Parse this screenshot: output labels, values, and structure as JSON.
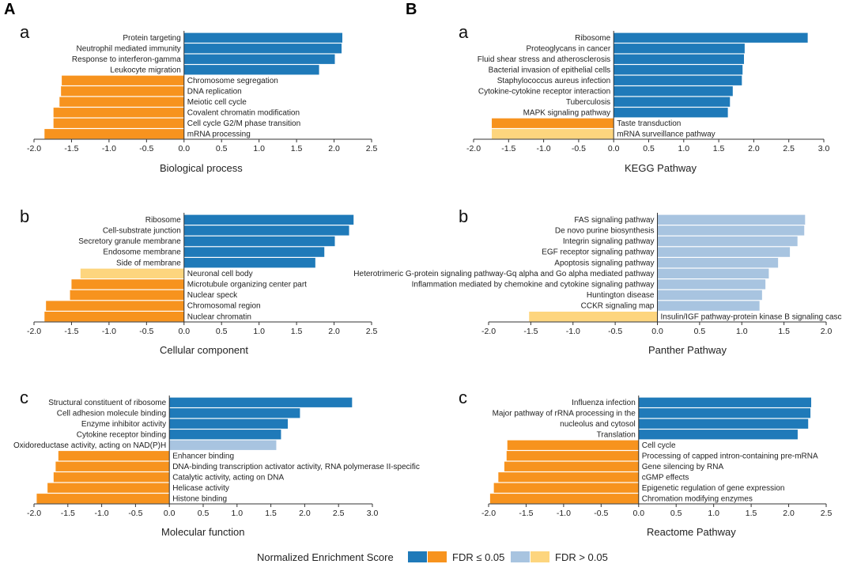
{
  "figure": {
    "panel_labels": [
      "A",
      "B"
    ],
    "legend": {
      "title": "Normalized Enrichment Score",
      "sig_label": "FDR ≤ 0.05",
      "nonsig_label": "FDR > 0.05",
      "colors": {
        "pos_sig": "#1f7ab9",
        "neg_sig": "#f7931e",
        "pos_nonsig": "#a8c4e0",
        "neg_nonsig": "#fdd57e"
      }
    }
  },
  "chart_data": [
    {
      "type": "bar",
      "orientation": "horizontal",
      "sub_label": "a",
      "title": "Biological process",
      "xlim": [
        -2.0,
        2.5
      ],
      "ticks": [
        "-2.0",
        "-1.5",
        "-1.0",
        "-0.5",
        "0.0",
        "0.5",
        "1.0",
        "1.5",
        "2.0",
        "2.5"
      ],
      "categories": [
        "Protein targeting",
        "Neutrophil mediated immunity",
        "Response to interferon-gamma",
        "Leukocyte migration",
        "Chromosome segregation",
        "DNA replication",
        "Meiotic cell cycle",
        "Covalent chromatin modification",
        "Cell cycle G2/M phase transition",
        "mRNA processing"
      ],
      "values": [
        2.11,
        2.1,
        2.01,
        1.8,
        -1.63,
        -1.64,
        -1.66,
        -1.74,
        -1.74,
        -1.86
      ],
      "significant": [
        true,
        true,
        true,
        true,
        true,
        true,
        true,
        true,
        true,
        true
      ]
    },
    {
      "type": "bar",
      "orientation": "horizontal",
      "sub_label": "b",
      "title": "Cellular component",
      "xlim": [
        -2.0,
        2.5
      ],
      "ticks": [
        "-2.0",
        "-1.5",
        "-1.0",
        "-0.5",
        "0.0",
        "0.5",
        "1.0",
        "1.5",
        "2.0",
        "2.5"
      ],
      "categories": [
        "Ribosome",
        "Cell-substrate junction",
        "Secretory granule membrane",
        "Endosome membrane",
        "Side of membrane",
        "Neuronal cell body",
        "Microtubule organizing center part",
        "Nuclear speck",
        "Chromosomal region",
        "Nuclear chromatin"
      ],
      "values": [
        2.26,
        2.2,
        2.01,
        1.87,
        1.75,
        -1.38,
        -1.5,
        -1.52,
        -1.84,
        -1.86
      ],
      "significant": [
        true,
        true,
        true,
        true,
        true,
        false,
        true,
        true,
        true,
        true
      ]
    },
    {
      "type": "bar",
      "orientation": "horizontal",
      "sub_label": "c",
      "title": "Molecular function",
      "xlim": [
        -2.0,
        3.0
      ],
      "ticks": [
        "-2.0",
        "-1.5",
        "-1.0",
        "-0.5",
        "0.0",
        "0.5",
        "1.0",
        "1.5",
        "2.0",
        "2.5",
        "3.0"
      ],
      "categories": [
        "Structural constituent of ribosome",
        "Cell adhesion molecule binding",
        "Enzyme inhibitor activity",
        "Cytokine receptor binding",
        "Oxidoreductase activity, acting on NAD(P)H",
        "Enhancer binding",
        "DNA-binding transcription activator activity, RNA polymerase II-specific",
        "Catalytic activity, acting on DNA",
        "Helicase activity",
        "Histone binding"
      ],
      "values": [
        2.7,
        1.93,
        1.75,
        1.65,
        1.58,
        -1.64,
        -1.68,
        -1.71,
        -1.8,
        -1.96
      ],
      "significant": [
        true,
        true,
        true,
        true,
        false,
        true,
        true,
        true,
        true,
        true
      ]
    },
    {
      "type": "bar",
      "orientation": "horizontal",
      "sub_label": "a",
      "title": "KEGG Pathway",
      "xlim": [
        -2.0,
        3.0
      ],
      "ticks": [
        "-2.0",
        "-1.5",
        "-1.0",
        "-0.5",
        "0.0",
        "0.5",
        "1.0",
        "1.5",
        "2.0",
        "2.5",
        "3.0"
      ],
      "categories": [
        "Ribosome",
        "Proteoglycans in cancer",
        "Fluid shear stress and atherosclerosis",
        "Bacterial invasion of epithelial cells",
        "Staphylococcus aureus infection",
        "Cytokine-cytokine receptor interaction",
        "Tuberculosis",
        "MAPK signaling pathway",
        "Taste transduction",
        "mRNA surveillance pathway"
      ],
      "values": [
        2.77,
        1.87,
        1.86,
        1.84,
        1.83,
        1.7,
        1.66,
        1.63,
        -1.74,
        -1.74
      ],
      "significant": [
        true,
        true,
        true,
        true,
        true,
        true,
        true,
        true,
        true,
        false
      ]
    },
    {
      "type": "bar",
      "orientation": "horizontal",
      "sub_label": "b",
      "title": "Panther Pathway",
      "xlim": [
        -2.0,
        2.0
      ],
      "ticks": [
        "-2.0",
        "-1.5",
        "-1.0",
        "-0.5",
        "0.0",
        "0.5",
        "1.0",
        "1.5",
        "2.0"
      ],
      "categories": [
        "FAS signaling pathway",
        "De novo purine biosynthesis",
        "Integrin signaling pathway",
        "EGF receptor signaling pathway",
        "Apoptosis signaling pathway",
        "Heterotrimeric G-protein signaling pathway-Gq alpha and Go alpha mediated pathway",
        "Inflammation mediated by chemokine and cytokine signaling pathway",
        "Huntington disease",
        "CCKR signaling map",
        "Insulin/IGF pathway-protein kinase B signaling cascade"
      ],
      "values": [
        1.75,
        1.74,
        1.66,
        1.57,
        1.43,
        1.32,
        1.28,
        1.24,
        1.21,
        -1.52
      ],
      "significant": [
        false,
        false,
        false,
        false,
        false,
        false,
        false,
        false,
        false,
        false
      ]
    },
    {
      "type": "bar",
      "orientation": "horizontal",
      "sub_label": "c",
      "title": "Reactome Pathway",
      "xlim": [
        -2.0,
        2.5
      ],
      "ticks": [
        "-2.0",
        "-1.5",
        "-1.0",
        "-0.5",
        "0.0",
        "0.5",
        "1.0",
        "1.5",
        "2.0",
        "2.5"
      ],
      "categories": [
        "Influenza infection",
        "Major pathway of rRNA processing in the",
        "nucleolus and cytosol",
        "Translation",
        "Cell cycle",
        "Processing of capped intron-containing pre-mRNA",
        "Gene silencing by RNA",
        "cGMP effects",
        "Epigenetic regulation of gene expression",
        "Chromation modifying enzymes"
      ],
      "values": [
        2.3,
        2.29,
        2.26,
        2.12,
        -1.75,
        -1.76,
        -1.79,
        -1.87,
        -1.93,
        -1.98
      ],
      "significant": [
        true,
        true,
        true,
        true,
        true,
        true,
        true,
        true,
        true,
        true
      ]
    }
  ]
}
